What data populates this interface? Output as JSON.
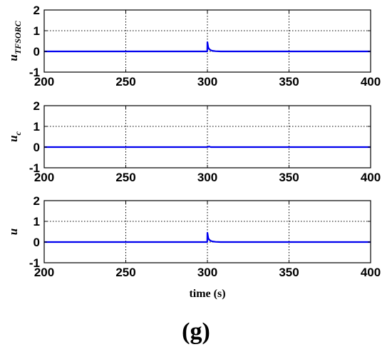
{
  "figure_caption": "(g)",
  "chart_data": [
    {
      "type": "line",
      "ylabel": "u",
      "ylabel_sub": "TFSORC",
      "xlabel": "",
      "xlim": [
        200,
        400
      ],
      "ylim": [
        -1,
        2
      ],
      "x_ticks": [
        "200",
        "250",
        "300",
        "350",
        "400"
      ],
      "y_ticks": [
        "-1",
        "0",
        "1",
        "2"
      ],
      "grid": true,
      "line_color": "#0000ee",
      "series": [
        {
          "x": [
            200,
            299.9,
            300,
            300.5,
            301,
            302,
            303,
            305,
            308,
            400
          ],
          "y": [
            0,
            0,
            0.45,
            0.2,
            0.12,
            0.06,
            0.03,
            0.01,
            0,
            0
          ]
        }
      ]
    },
    {
      "type": "line",
      "ylabel": "u",
      "ylabel_sub": "c",
      "xlabel": "",
      "xlim": [
        200,
        400
      ],
      "ylim": [
        -1,
        2
      ],
      "x_ticks": [
        "200",
        "250",
        "300",
        "350",
        "400"
      ],
      "y_ticks": [
        "-1",
        "0",
        "1",
        "2"
      ],
      "grid": true,
      "line_color": "#0000ee",
      "series": [
        {
          "x": [
            200,
            300,
            301,
            302,
            400
          ],
          "y": [
            0,
            0,
            0.03,
            0,
            0
          ]
        }
      ]
    },
    {
      "type": "line",
      "ylabel": "u",
      "ylabel_sub": "",
      "xlabel": "time (s)",
      "xlim": [
        200,
        400
      ],
      "ylim": [
        -1,
        2
      ],
      "x_ticks": [
        "200",
        "250",
        "300",
        "350",
        "400"
      ],
      "y_ticks": [
        "-1",
        "0",
        "1",
        "2"
      ],
      "grid": true,
      "line_color": "#0000ee",
      "series": [
        {
          "x": [
            200,
            299.9,
            300,
            300.5,
            301,
            302,
            303,
            305,
            308,
            400
          ],
          "y": [
            0,
            0,
            0.45,
            0.2,
            0.12,
            0.06,
            0.03,
            0.01,
            0,
            0
          ]
        }
      ]
    }
  ]
}
